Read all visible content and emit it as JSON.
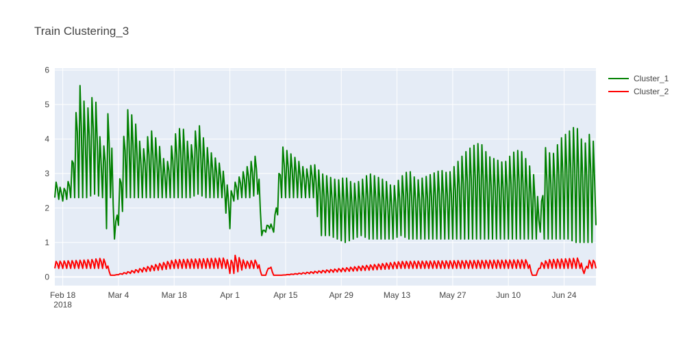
{
  "chart_data": {
    "type": "line",
    "title": "Train Clustering_3",
    "xlabel": "",
    "ylabel": "",
    "x_range": [
      "2018-02-16",
      "2018-07-02"
    ],
    "ylim": [
      -0.25,
      6.05
    ],
    "grid": true,
    "legend_position": "top-right (outside plot)",
    "x_ticks": [
      {
        "date": "2018-02-18",
        "label": "Feb 18",
        "sublabel": "2018"
      },
      {
        "date": "2018-03-04",
        "label": "Mar 4"
      },
      {
        "date": "2018-03-18",
        "label": "Mar 18"
      },
      {
        "date": "2018-04-01",
        "label": "Apr 1"
      },
      {
        "date": "2018-04-15",
        "label": "Apr 15"
      },
      {
        "date": "2018-04-29",
        "label": "Apr 29"
      },
      {
        "date": "2018-05-13",
        "label": "May 13"
      },
      {
        "date": "2018-05-27",
        "label": "May 27"
      },
      {
        "date": "2018-06-10",
        "label": "Jun 10"
      },
      {
        "date": "2018-06-24",
        "label": "Jun 24"
      }
    ],
    "y_ticks": [
      0,
      1,
      2,
      3,
      4,
      5,
      6
    ],
    "series": [
      {
        "name": "Cluster_1",
        "color": "#008000",
        "x": [
          "2018-02-16",
          "2018-02-18",
          "2018-02-20",
          "2018-02-22",
          "2018-02-24",
          "2018-02-26",
          "2018-02-28",
          "2018-03-01",
          "2018-03-02",
          "2018-03-03",
          "2018-03-06",
          "2018-03-08",
          "2018-03-10",
          "2018-03-12",
          "2018-03-14",
          "2018-03-16",
          "2018-03-18",
          "2018-03-20",
          "2018-03-22",
          "2018-03-24",
          "2018-03-26",
          "2018-03-28",
          "2018-03-30",
          "2018-04-01",
          "2018-04-02",
          "2018-04-04",
          "2018-04-06",
          "2018-04-08",
          "2018-04-09",
          "2018-04-11",
          "2018-04-12",
          "2018-04-14",
          "2018-04-16",
          "2018-04-18",
          "2018-04-20",
          "2018-04-22",
          "2018-04-24",
          "2018-04-26",
          "2018-04-28",
          "2018-04-30",
          "2018-05-02",
          "2018-05-04",
          "2018-05-06",
          "2018-05-08",
          "2018-05-10",
          "2018-05-12",
          "2018-05-14",
          "2018-05-16",
          "2018-05-18",
          "2018-05-20",
          "2018-05-22",
          "2018-05-24",
          "2018-05-26",
          "2018-05-28",
          "2018-05-30",
          "2018-06-01",
          "2018-06-03",
          "2018-06-05",
          "2018-06-07",
          "2018-06-09",
          "2018-06-11",
          "2018-06-13",
          "2018-06-15",
          "2018-06-17",
          "2018-06-18",
          "2018-06-19",
          "2018-06-21",
          "2018-06-23",
          "2018-06-25",
          "2018-06-27",
          "2018-06-29",
          "2018-07-01",
          "2018-07-02"
        ],
        "y": [
          2.8,
          2.5,
          2.9,
          5.7,
          4.8,
          5.4,
          3.4,
          4.6,
          5.0,
          1.2,
          4.9,
          4.6,
          3.6,
          4.3,
          3.9,
          3.2,
          4.1,
          4.4,
          3.7,
          4.5,
          3.8,
          3.5,
          3.2,
          2.4,
          2.7,
          3.0,
          3.3,
          3.6,
          1.3,
          1.6,
          1.4,
          3.8,
          3.6,
          3.4,
          3.1,
          3.3,
          3.0,
          2.9,
          2.8,
          2.9,
          2.7,
          2.8,
          3.0,
          2.9,
          2.8,
          2.6,
          2.9,
          3.1,
          2.8,
          2.9,
          3.0,
          3.1,
          3.0,
          3.3,
          3.6,
          3.8,
          3.9,
          3.5,
          3.4,
          3.3,
          3.6,
          3.7,
          3.3,
          2.8,
          1.4,
          3.8,
          3.5,
          4.0,
          4.2,
          4.4,
          3.8,
          4.3,
          3.2
        ],
        "y_min": [
          2.3,
          2.2,
          2.3,
          2.3,
          2.3,
          2.4,
          2.3,
          1.4,
          2.3,
          1.1,
          2.3,
          2.3,
          2.3,
          2.3,
          2.3,
          2.3,
          2.3,
          2.3,
          2.3,
          2.4,
          2.3,
          2.3,
          2.3,
          1.4,
          2.2,
          2.3,
          2.3,
          2.4,
          1.2,
          1.4,
          1.3,
          2.3,
          2.3,
          2.3,
          2.3,
          2.3,
          1.2,
          1.2,
          1.1,
          1.0,
          1.1,
          1.2,
          1.1,
          1.1,
          1.1,
          1.1,
          1.2,
          1.1,
          1.1,
          1.1,
          1.1,
          1.1,
          1.1,
          1.1,
          1.1,
          1.1,
          1.1,
          1.1,
          1.1,
          1.1,
          1.1,
          1.1,
          1.1,
          1.1,
          1.3,
          1.1,
          1.1,
          1.1,
          1.1,
          1.0,
          1.0,
          1.0,
          1.5
        ]
      },
      {
        "name": "Cluster_2",
        "color": "#ff0000",
        "x": [
          "2018-02-16",
          "2018-02-25",
          "2018-02-28",
          "2018-03-01",
          "2018-03-02",
          "2018-03-03",
          "2018-03-18",
          "2018-03-31",
          "2018-04-01",
          "2018-04-02",
          "2018-04-05",
          "2018-04-08",
          "2018-04-09",
          "2018-04-10",
          "2018-04-11",
          "2018-04-12",
          "2018-04-13",
          "2018-04-14",
          "2018-05-14",
          "2018-06-15",
          "2018-06-16",
          "2018-06-17",
          "2018-06-18",
          "2018-06-19",
          "2018-06-20",
          "2018-06-28",
          "2018-06-29",
          "2018-06-30",
          "2018-07-01",
          "2018-07-02"
        ],
        "y": [
          0.45,
          0.5,
          0.55,
          0.45,
          0.05,
          0.05,
          0.5,
          0.55,
          0.4,
          0.65,
          0.45,
          0.5,
          0.05,
          0.05,
          0.4,
          0.05,
          0.05,
          0.05,
          0.45,
          0.5,
          0.05,
          0.05,
          0.4,
          0.45,
          0.5,
          0.55,
          0.1,
          0.5,
          0.45,
          0.55
        ],
        "y_min": [
          0.25,
          0.25,
          0.25,
          0.25,
          0.05,
          0.05,
          0.25,
          0.25,
          0.1,
          0.1,
          0.25,
          0.25,
          0.05,
          0.05,
          0.25,
          0.05,
          0.05,
          0.05,
          0.25,
          0.25,
          0.05,
          0.05,
          0.25,
          0.25,
          0.25,
          0.25,
          0.1,
          0.25,
          0.25,
          0.25
        ]
      }
    ]
  }
}
